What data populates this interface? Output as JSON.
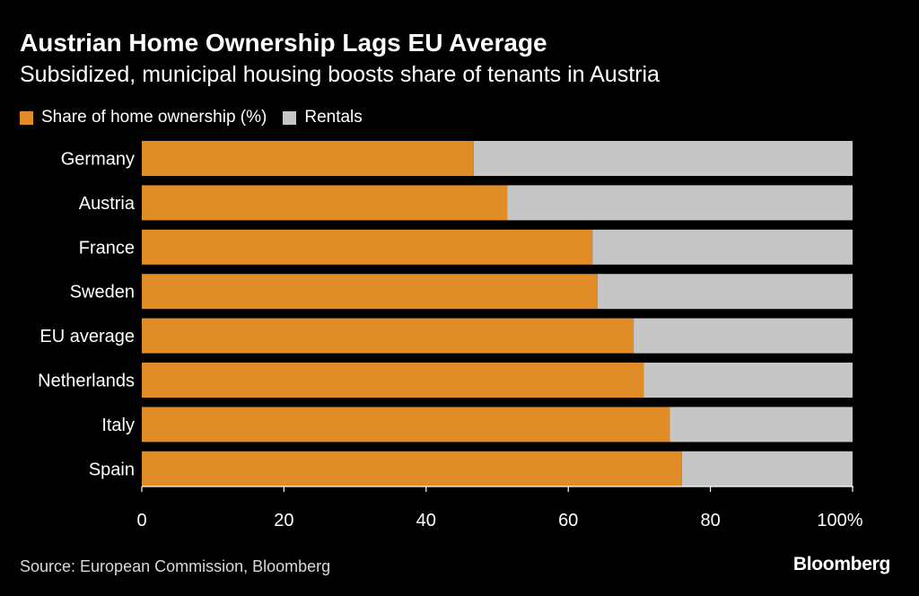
{
  "title": "Austrian Home Ownership Lags EU Average",
  "subtitle": "Subsidized, municipal housing boosts share of tenants in Austria",
  "source": "Source: European Commission, Bloomberg",
  "brand": "Bloomberg",
  "colors": {
    "background": "#000000",
    "ownership": "#e08c27",
    "rentals": "#c6c6c6",
    "text": "#ffffff"
  },
  "chart_data": {
    "type": "bar",
    "orientation": "horizontal",
    "stacked": true,
    "categories": [
      "Germany",
      "Austria",
      "France",
      "Sweden",
      "EU average",
      "Netherlands",
      "Italy",
      "Spain"
    ],
    "series": [
      {
        "name": "Share of home ownership (%)",
        "values": [
          46.7,
          51.4,
          63.4,
          64.1,
          69.2,
          70.6,
          74.3,
          76.0
        ]
      },
      {
        "name": "Rentals",
        "values": [
          53.3,
          48.6,
          36.6,
          35.9,
          30.8,
          29.4,
          25.7,
          24.0
        ]
      }
    ],
    "xlim": [
      0,
      100
    ],
    "xticks": [
      "0",
      "20",
      "40",
      "60",
      "80",
      "100%"
    ],
    "legend": "top-left",
    "grid": false
  }
}
